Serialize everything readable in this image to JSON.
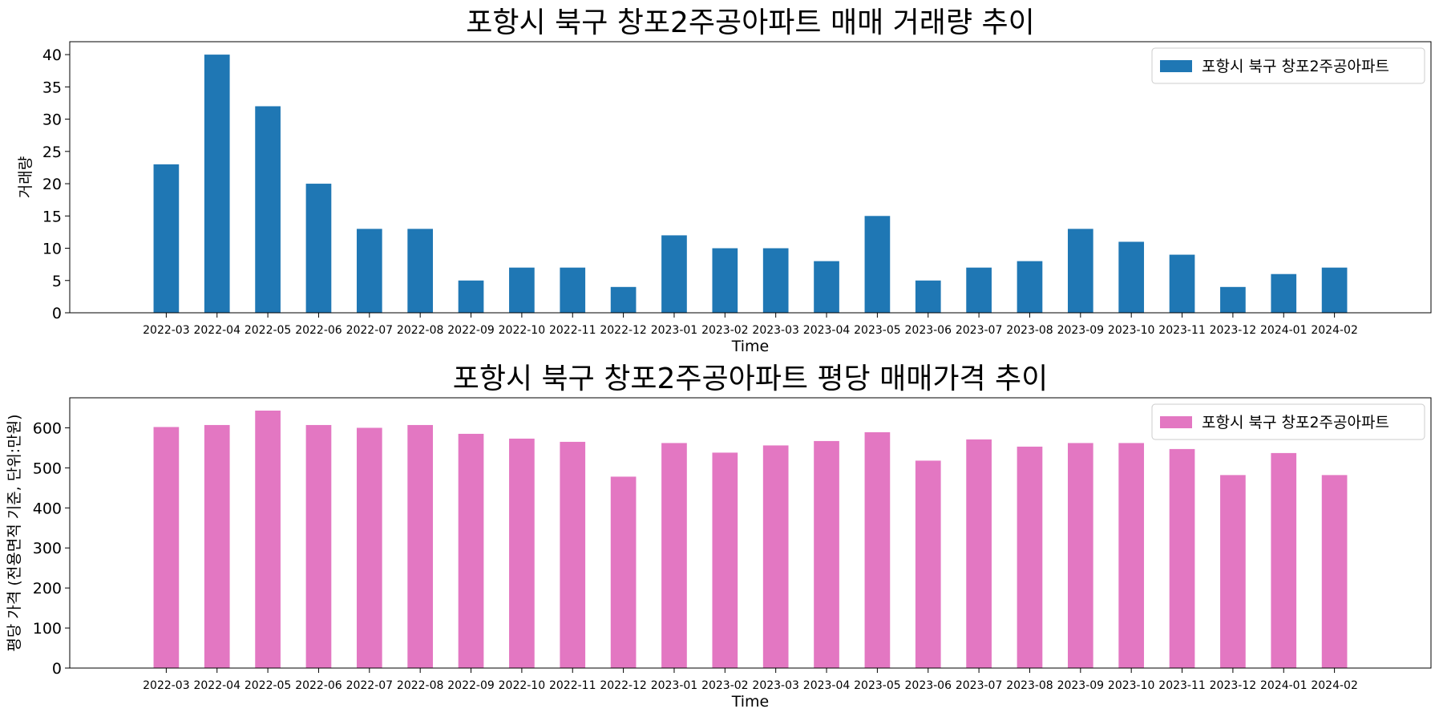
{
  "colors": {
    "volume": "#1f77b4",
    "price": "#e377c2"
  },
  "chart_data": [
    {
      "type": "bar",
      "title": "포항시 북구 창포2주공아파트 매매 거래량 추이",
      "xlabel": "Time",
      "ylabel": "거래량",
      "ylim": [
        0,
        42
      ],
      "yticks": [
        0,
        5,
        10,
        15,
        20,
        25,
        30,
        35,
        40
      ],
      "grid": false,
      "legend_position": "top-right",
      "categories": [
        "2022-03",
        "2022-04",
        "2022-05",
        "2022-06",
        "2022-07",
        "2022-08",
        "2022-09",
        "2022-10",
        "2022-11",
        "2022-12",
        "2023-01",
        "2023-02",
        "2023-03",
        "2023-04",
        "2023-05",
        "2023-06",
        "2023-07",
        "2023-08",
        "2023-09",
        "2023-10",
        "2023-11",
        "2023-12",
        "2024-01",
        "2024-02"
      ],
      "series": [
        {
          "name": "포항시 북구 창포2주공아파트",
          "color": "#1f77b4",
          "values": [
            23,
            40,
            32,
            20,
            13,
            13,
            5,
            7,
            7,
            4,
            12,
            10,
            10,
            8,
            15,
            5,
            7,
            8,
            13,
            11,
            9,
            4,
            6,
            7
          ]
        }
      ]
    },
    {
      "type": "bar",
      "title": "포항시 북구 창포2주공아파트 평당 매매가격 추이",
      "xlabel": "Time",
      "ylabel": "평당 가격 (전용면적 기준, 단위:만원)",
      "ylim": [
        0,
        675
      ],
      "yticks": [
        0,
        100,
        200,
        300,
        400,
        500,
        600
      ],
      "grid": false,
      "legend_position": "top-right",
      "categories": [
        "2022-03",
        "2022-04",
        "2022-05",
        "2022-06",
        "2022-07",
        "2022-08",
        "2022-09",
        "2022-10",
        "2022-11",
        "2022-12",
        "2023-01",
        "2023-02",
        "2023-03",
        "2023-04",
        "2023-05",
        "2023-06",
        "2023-07",
        "2023-08",
        "2023-09",
        "2023-10",
        "2023-11",
        "2023-12",
        "2024-01",
        "2024-02"
      ],
      "series": [
        {
          "name": "포항시 북구 창포2주공아파트",
          "color": "#e377c2",
          "values": [
            602,
            607,
            643,
            607,
            600,
            607,
            585,
            573,
            565,
            478,
            562,
            538,
            556,
            567,
            589,
            518,
            571,
            553,
            562,
            562,
            547,
            482,
            537,
            482
          ]
        }
      ]
    }
  ]
}
